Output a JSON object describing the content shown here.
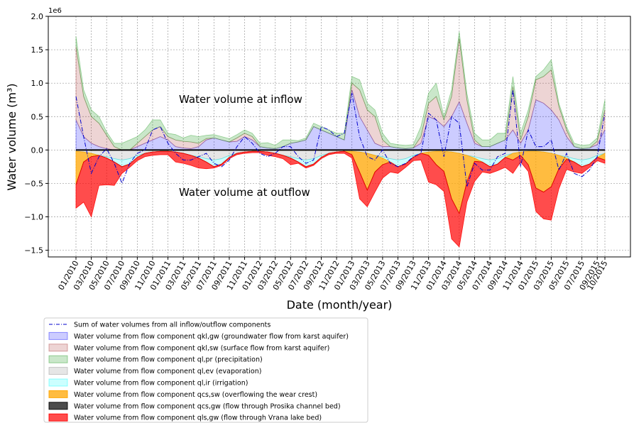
{
  "chart_data": {
    "type": "stacked-area",
    "offset_label": "1e6",
    "y_label": "Water volume (m³)",
    "x_label": "Date (month/year)",
    "annotations": [
      "Water volume at inflow",
      "Water volume at outflow"
    ],
    "ylim": [
      -1.6,
      2.0
    ],
    "yticks": [
      {
        "value": -1.5,
        "label": "−1.5"
      },
      {
        "value": -1.0,
        "label": "−1.0"
      },
      {
        "value": -0.5,
        "label": "−0.5"
      },
      {
        "value": 0,
        "label": "0.0"
      },
      0.5,
      {
        "value": 1.0,
        "label": "1.0"
      },
      1.5,
      {
        "value": 2.0,
        "label": "2.0"
      }
    ],
    "grid": true,
    "categories": [
      "01/2010",
      null,
      "03/2010",
      null,
      "05/2010",
      null,
      "07/2010",
      null,
      "09/2010",
      null,
      "11/2010",
      null,
      "01/2011",
      null,
      "03/2011",
      null,
      "05/2011",
      null,
      "07/2011",
      null,
      "09/2011",
      null,
      "11/2011",
      null,
      "01/2012",
      null,
      "03/2012",
      null,
      "05/2012",
      null,
      "07/2012",
      null,
      "09/2012",
      null,
      "11/2012",
      null,
      "01/2013",
      null,
      "03/2013",
      null,
      "05/2013",
      null,
      "07/2013",
      null,
      "09/2013",
      null,
      "11/2013",
      null,
      "01/2014",
      null,
      "03/2014",
      null,
      "05/2014",
      null,
      "07/2014",
      null,
      "09/2014",
      null,
      "11/2014",
      null,
      "01/2015",
      null,
      "03/2015",
      null,
      "05/2015",
      null,
      "07/2015",
      null,
      "09/2015",
      "10/2015"
    ],
    "series": [
      {
        "name": "Sum of water volumes from all inflow/outflow components",
        "kind": "line",
        "color": "#0000cc",
        "values": [
          0.8,
          0.2,
          -0.35,
          -0.1,
          0.02,
          -0.2,
          -0.5,
          -0.2,
          -0.05,
          0,
          0.3,
          0.35,
          0.1,
          -0.05,
          -0.15,
          -0.15,
          -0.1,
          -0.05,
          -0.2,
          -0.25,
          -0.15,
          0.05,
          0.2,
          0.1,
          -0.05,
          -0.1,
          -0.05,
          0.05,
          0.05,
          -0.1,
          -0.2,
          -0.15,
          0.35,
          0.3,
          0.2,
          0.25,
          0.85,
          0.2,
          -0.1,
          -0.15,
          0,
          -0.2,
          -0.25,
          -0.2,
          -0.1,
          -0.05,
          0.55,
          0.45,
          -0.1,
          0.5,
          0.4,
          -0.55,
          -0.2,
          -0.3,
          -0.3,
          -0.1,
          -0.05,
          0.9,
          -0.25,
          0.3,
          0.05,
          0.05,
          0.15,
          -0.3,
          -0.05,
          -0.35,
          -0.4,
          -0.3,
          -0.1,
          0.55
        ]
      },
      {
        "name": "Water volume from flow component qkl,gw (groundwater flow from karst aquifer)",
        "kind": "area",
        "stack": "in",
        "color": "#0000ff",
        "opacity": 0.2,
        "values": [
          0.45,
          0.2,
          0.1,
          0.05,
          0.02,
          0,
          0,
          0,
          0.05,
          0.1,
          0.15,
          0.2,
          0.15,
          0.05,
          0.03,
          0.02,
          0.05,
          0.15,
          0.18,
          0.15,
          0.12,
          0.13,
          0.2,
          0.15,
          0.05,
          0.03,
          0.02,
          0.05,
          0.1,
          0.12,
          0.15,
          0.35,
          0.3,
          0.25,
          0.2,
          0.15,
          0.9,
          0.5,
          0.3,
          0.1,
          0.05,
          0.05,
          0.03,
          0.02,
          0.03,
          0.1,
          0.5,
          0.45,
          0.35,
          0.5,
          0.72,
          0.4,
          0.1,
          0.05,
          0.05,
          0.1,
          0.15,
          0.3,
          0.1,
          0.3,
          0.75,
          0.7,
          0.6,
          0.45,
          0.2,
          0.05,
          0.02,
          0.03,
          0.08,
          0.3
        ]
      },
      {
        "name": "Water volume from flow component qkl,sw (surface flow from karst aquifer)",
        "kind": "area",
        "stack": "in",
        "color": "#a52a2a",
        "opacity": 0.2,
        "values": [
          1.1,
          0.6,
          0.4,
          0.35,
          0.2,
          0.05,
          0,
          0,
          0.05,
          0.1,
          0.15,
          0.15,
          0.05,
          0.1,
          0.1,
          0.1,
          0.05,
          0.02,
          0,
          0,
          0,
          0.05,
          0.05,
          0.05,
          0,
          0,
          0,
          0,
          0,
          0,
          0,
          0,
          0,
          0,
          0,
          0,
          0.1,
          0.4,
          0.3,
          0.4,
          0.1,
          0,
          0,
          0,
          0,
          0.1,
          0.2,
          0.35,
          0.1,
          0.3,
          0.95,
          0.35,
          0.05,
          0,
          0,
          0,
          0,
          0.65,
          0.05,
          0.2,
          0.3,
          0.4,
          0.6,
          0.2,
          0.1,
          0,
          0,
          0,
          0.05,
          0.3
        ]
      },
      {
        "name": "Water volume from flow component ql,pr (precipitation)",
        "kind": "area",
        "stack": "in",
        "color": "#2ca02c",
        "opacity": 0.25,
        "values": [
          0.15,
          0.1,
          0.1,
          0.1,
          0.05,
          0.05,
          0.1,
          0.15,
          0.1,
          0.1,
          0.15,
          0.1,
          0.05,
          0.08,
          0.05,
          0.1,
          0.1,
          0.05,
          0.05,
          0.05,
          0.05,
          0.05,
          0.05,
          0.05,
          0.05,
          0.08,
          0.05,
          0.1,
          0.05,
          0.02,
          0.03,
          0.05,
          0.05,
          0.05,
          0.05,
          0.1,
          0.1,
          0.15,
          0.1,
          0.1,
          0.1,
          0.05,
          0.05,
          0.05,
          0.05,
          0.15,
          0.15,
          0.2,
          0.05,
          0.1,
          0.1,
          0.1,
          0.1,
          0.1,
          0.1,
          0.15,
          0.1,
          0.15,
          0.1,
          0.1,
          0.05,
          0.1,
          0.15,
          0.05,
          0.05,
          0.05,
          0.05,
          0.05,
          0.05,
          0.15
        ]
      },
      {
        "name": "Water volume from flow component ql,ev (evaporation)",
        "kind": "area",
        "stack": "out",
        "color": "#808080",
        "opacity": 0.2,
        "values": [
          -0.02,
          -0.03,
          -0.05,
          -0.08,
          -0.1,
          -0.13,
          -0.15,
          -0.13,
          -0.08,
          -0.05,
          -0.03,
          -0.02,
          -0.02,
          -0.03,
          -0.05,
          -0.08,
          -0.1,
          -0.13,
          -0.15,
          -0.13,
          -0.08,
          -0.05,
          -0.03,
          -0.02,
          -0.02,
          -0.03,
          -0.05,
          -0.08,
          -0.1,
          -0.13,
          -0.15,
          -0.13,
          -0.08,
          -0.05,
          -0.03,
          -0.02,
          -0.02,
          -0.03,
          -0.05,
          -0.08,
          -0.1,
          -0.13,
          -0.15,
          -0.13,
          -0.08,
          -0.05,
          -0.03,
          -0.02,
          -0.02,
          -0.03,
          -0.05,
          -0.08,
          -0.1,
          -0.13,
          -0.15,
          -0.13,
          -0.08,
          -0.05,
          -0.03,
          -0.02,
          -0.02,
          -0.03,
          -0.05,
          -0.08,
          -0.1,
          -0.13,
          -0.15,
          -0.13,
          -0.08,
          -0.05
        ]
      },
      {
        "name": "Water volume from flow component ql,ir (irrigation)",
        "kind": "area",
        "stack": "out",
        "color": "#00ffff",
        "opacity": 0.2,
        "values": [
          0,
          0,
          0,
          0,
          -0.02,
          -0.05,
          -0.1,
          -0.08,
          -0.03,
          0,
          0,
          0,
          0,
          0,
          0,
          0,
          -0.02,
          -0.05,
          -0.1,
          -0.08,
          -0.03,
          0,
          0,
          0,
          0,
          0,
          0,
          0,
          -0.02,
          -0.05,
          -0.1,
          -0.08,
          -0.03,
          0,
          0,
          0,
          0,
          0,
          0,
          0,
          -0.02,
          -0.05,
          -0.1,
          -0.08,
          -0.03,
          0,
          0,
          0,
          0,
          0,
          0,
          0,
          -0.02,
          -0.05,
          -0.1,
          -0.08,
          -0.03,
          0,
          0,
          0,
          0,
          0,
          0,
          0,
          -0.02,
          -0.05,
          -0.1,
          -0.08,
          -0.03,
          0
        ]
      },
      {
        "name": "Water volume from flow component qcs,sw (overflowing the wear crest)",
        "kind": "area",
        "stack": "out",
        "color": "#ffa500",
        "opacity": 0.75,
        "values": [
          -0.5,
          -0.15,
          -0.05,
          0,
          0,
          0,
          0,
          0,
          0,
          0,
          0,
          0,
          0,
          0,
          0,
          0,
          0,
          0,
          0,
          0,
          0,
          0,
          0,
          0,
          0,
          0,
          0,
          0,
          0,
          0,
          0,
          0,
          0,
          0,
          0,
          0,
          -0.05,
          -0.3,
          -0.55,
          -0.25,
          -0.1,
          0,
          0,
          0,
          0,
          0,
          -0.05,
          -0.2,
          -0.3,
          -0.7,
          -0.9,
          -0.4,
          -0.05,
          0,
          0,
          0,
          0,
          -0.1,
          -0.05,
          -0.2,
          -0.55,
          -0.6,
          -0.5,
          -0.2,
          -0.02,
          0,
          0,
          0,
          0,
          -0.1
        ]
      },
      {
        "name": "Water volume from flow component qcs,gw (flow through Prosika channel bed)",
        "kind": "area",
        "stack": "out",
        "color": "#000000",
        "opacity": 0.7,
        "values": [
          0,
          0,
          0,
          0,
          0,
          0,
          0,
          0,
          0,
          0,
          0,
          0,
          0,
          0,
          0,
          0,
          0,
          0,
          0,
          0,
          0,
          0,
          0,
          0,
          0,
          0,
          0,
          0,
          0,
          0,
          0,
          0,
          0,
          0,
          0,
          0,
          0,
          0,
          0,
          0,
          0,
          0,
          0,
          0,
          0,
          0,
          0,
          0,
          0,
          0,
          0,
          0,
          0,
          0,
          0,
          0,
          0,
          0,
          0,
          0,
          0,
          0,
          0,
          0,
          0,
          0,
          0,
          0,
          0,
          0
        ]
      },
      {
        "name": "Water volume from flow component qls,gw (flow through Vrana lake bed)",
        "kind": "area",
        "stack": "out",
        "color": "#ff0000",
        "opacity": 0.7,
        "values": [
          -0.35,
          -0.6,
          -0.9,
          -0.45,
          -0.4,
          -0.35,
          -0.1,
          -0.05,
          -0.05,
          -0.05,
          -0.05,
          -0.05,
          -0.05,
          -0.15,
          -0.15,
          -0.15,
          -0.15,
          -0.1,
          -0.02,
          -0.02,
          -0.02,
          -0.02,
          -0.02,
          -0.02,
          -0.02,
          -0.05,
          -0.05,
          -0.05,
          -0.1,
          -0.02,
          -0.02,
          -0.02,
          -0.02,
          -0.02,
          -0.02,
          -0.03,
          -0.05,
          -0.4,
          -0.25,
          -0.3,
          -0.2,
          -0.15,
          -0.1,
          -0.05,
          -0.05,
          -0.1,
          -0.4,
          -0.3,
          -0.3,
          -0.6,
          -0.5,
          -0.3,
          -0.3,
          -0.15,
          -0.1,
          -0.1,
          -0.15,
          -0.2,
          -0.1,
          -0.1,
          -0.35,
          -0.4,
          -0.5,
          -0.3,
          -0.15,
          -0.15,
          -0.1,
          -0.05,
          -0.05,
          -0.05
        ]
      }
    ]
  }
}
